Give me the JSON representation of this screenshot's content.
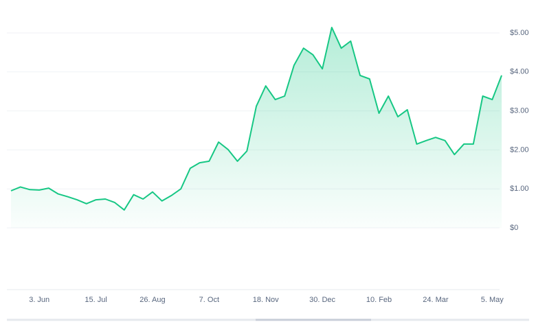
{
  "chart_data": {
    "type": "area",
    "categories": [
      null,
      null,
      null,
      "3. Jun",
      null,
      null,
      null,
      null,
      null,
      "15. Jul",
      null,
      null,
      null,
      null,
      null,
      "26. Aug",
      null,
      null,
      null,
      null,
      null,
      "7. Oct",
      null,
      null,
      null,
      null,
      null,
      "18. Nov",
      null,
      null,
      null,
      null,
      null,
      "30. Dec",
      null,
      null,
      null,
      null,
      null,
      "10. Feb",
      null,
      null,
      null,
      null,
      null,
      "24. Mar",
      null,
      null,
      null,
      null,
      null,
      "5. May",
      null
    ],
    "values": [
      0.95,
      1.05,
      0.98,
      0.97,
      1.02,
      0.87,
      0.8,
      0.72,
      0.62,
      0.72,
      0.74,
      0.65,
      0.46,
      0.85,
      0.74,
      0.92,
      0.69,
      0.83,
      1.0,
      1.53,
      1.67,
      1.71,
      2.2,
      2.01,
      1.71,
      1.97,
      3.12,
      3.64,
      3.29,
      3.38,
      4.17,
      4.61,
      4.44,
      4.08,
      5.14,
      4.61,
      4.79,
      3.91,
      3.82,
      2.94,
      3.38,
      2.85,
      3.03,
      2.15,
      2.24,
      2.32,
      2.24,
      1.88,
      2.15,
      2.15,
      3.38,
      3.29,
      3.91
    ],
    "color": "#16c784",
    "ylim": [
      0,
      5.3
    ],
    "yticks": [
      {
        "value": 0,
        "label": "$0"
      },
      {
        "value": 1,
        "label": "$1.00"
      },
      {
        "value": 2,
        "label": "$2.00"
      },
      {
        "value": 3,
        "label": "$3.00"
      },
      {
        "value": 4,
        "label": "$4.00"
      },
      {
        "value": 5,
        "label": "$5.00"
      }
    ],
    "grid": true
  }
}
